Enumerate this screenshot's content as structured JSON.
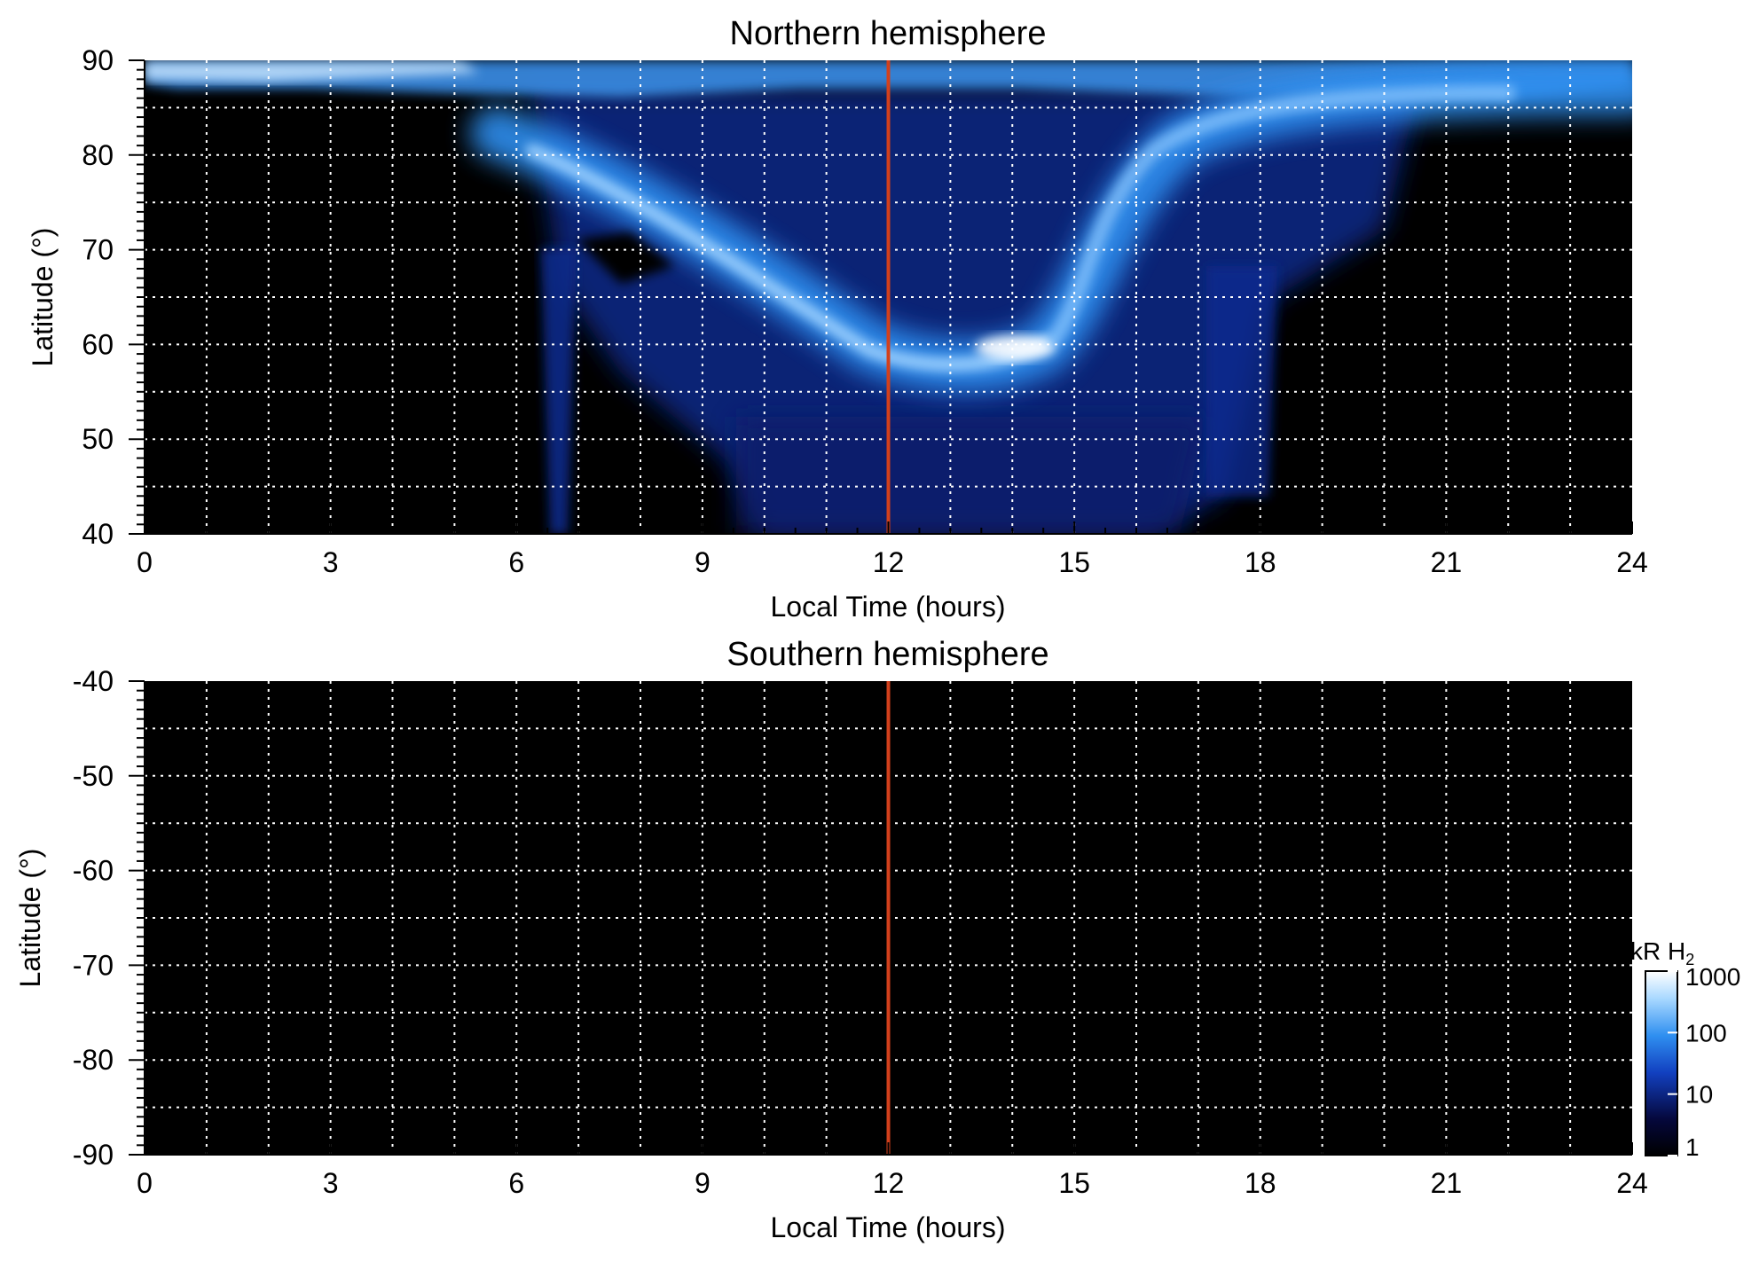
{
  "chart_data": [
    {
      "type": "heatmap",
      "title": "Northern hemisphere",
      "xlabel": "Local Time (hours)",
      "ylabel": "Latitude (°)",
      "xlim": [
        0,
        24
      ],
      "ylim": [
        40,
        90
      ],
      "x_ticks": [
        0,
        3,
        6,
        9,
        12,
        15,
        18,
        21,
        24
      ],
      "y_ticks": [
        40,
        50,
        60,
        70,
        80,
        90
      ],
      "x_tick_labels": [
        "0",
        "3",
        "6",
        "9",
        "12",
        "15",
        "18",
        "21",
        "24"
      ],
      "y_tick_labels": [
        "40",
        "50",
        "60",
        "70",
        "80",
        "90"
      ],
      "grid": true,
      "reference_line_x": 12,
      "reference_line_color": "#d2401c",
      "colorbar": "kR H₂",
      "features": [
        {
          "description": "bright auroral oval",
          "points": [
            [
              6.5,
              78
            ],
            [
              8,
              75
            ],
            [
              9.5,
              70
            ],
            [
              11,
              63
            ],
            [
              12,
              59
            ],
            [
              13,
              58
            ],
            [
              14,
              59.5
            ],
            [
              15,
              64
            ],
            [
              16,
              72
            ],
            [
              17,
              80
            ],
            [
              19,
              85
            ],
            [
              21,
              87
            ],
            [
              24,
              87
            ]
          ]
        },
        {
          "description": "brightest spot",
          "x": 13.8,
          "y": 59.5
        },
        {
          "description": "dark gap",
          "x": 7.2,
          "y": 72
        }
      ]
    },
    {
      "type": "heatmap",
      "title": "Southern hemisphere",
      "xlabel": "Local Time (hours)",
      "ylabel": "Latitude (°)",
      "xlim": [
        0,
        24
      ],
      "ylim": [
        -90,
        -40
      ],
      "x_ticks": [
        0,
        3,
        6,
        9,
        12,
        15,
        18,
        21,
        24
      ],
      "y_ticks": [
        -40,
        -50,
        -60,
        -70,
        -80,
        -90
      ],
      "x_tick_labels": [
        "0",
        "3",
        "6",
        "9",
        "12",
        "15",
        "18",
        "21",
        "24"
      ],
      "y_tick_labels": [
        "-40",
        "-50",
        "-60",
        "-70",
        "-80",
        "-90"
      ],
      "grid": true,
      "reference_line_x": 12,
      "reference_line_color": "#d2401c",
      "values": "no emission (uniformly dark)"
    }
  ],
  "colorbar": {
    "label_text": "kR H",
    "label_subscript": "2",
    "scale": "log",
    "range": [
      1,
      1000
    ],
    "ticks": [
      1,
      10,
      100,
      1000
    ],
    "tick_labels": [
      "1",
      "10",
      "100",
      "1000"
    ],
    "colors": [
      "#000000",
      "#05083d",
      "#1240c0",
      "#2f8ff0",
      "#a8d8ff",
      "#ffffff"
    ]
  }
}
